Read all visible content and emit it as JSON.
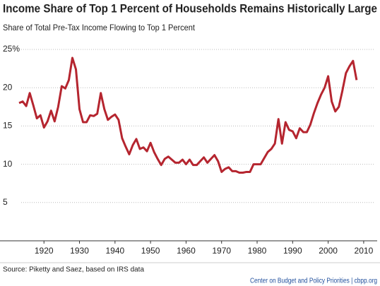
{
  "chart_data": {
    "type": "line",
    "title": "Income Share of Top 1 Percent of Households Remains Historically Large",
    "subtitle": "Share of Total Pre-Tax Income Flowing to Top 1 Percent",
    "source": "Source: Piketty and Saez, based on IRS data",
    "credit": "Center on Budget and Policy Priorities | cbpp.org",
    "x": [
      1913,
      1914,
      1915,
      1916,
      1917,
      1918,
      1919,
      1920,
      1921,
      1922,
      1923,
      1924,
      1925,
      1926,
      1927,
      1928,
      1929,
      1930,
      1931,
      1932,
      1933,
      1934,
      1935,
      1936,
      1937,
      1938,
      1939,
      1940,
      1941,
      1942,
      1943,
      1944,
      1945,
      1946,
      1947,
      1948,
      1949,
      1950,
      1951,
      1952,
      1953,
      1954,
      1955,
      1956,
      1957,
      1958,
      1959,
      1960,
      1961,
      1962,
      1963,
      1964,
      1965,
      1966,
      1967,
      1968,
      1969,
      1970,
      1971,
      1972,
      1973,
      1974,
      1975,
      1976,
      1977,
      1978,
      1979,
      1980,
      1981,
      1982,
      1983,
      1984,
      1985,
      1986,
      1987,
      1988,
      1989,
      1990,
      1991,
      1992,
      1993,
      1994,
      1995,
      1996,
      1997,
      1998,
      1999,
      2000,
      2001,
      2002,
      2003,
      2004,
      2005,
      2006,
      2007,
      2008
    ],
    "series": [
      {
        "name": "Top 1 percent share",
        "color": "#b5252f",
        "values": [
          18.0,
          18.2,
          17.6,
          19.3,
          17.7,
          16.0,
          16.4,
          14.8,
          15.6,
          17.0,
          15.6,
          17.5,
          20.2,
          19.9,
          21.0,
          23.9,
          22.4,
          17.2,
          15.5,
          15.5,
          16.4,
          16.3,
          16.6,
          19.3,
          17.2,
          15.8,
          16.2,
          16.5,
          15.8,
          13.4,
          12.3,
          11.3,
          12.5,
          13.3,
          12.0,
          12.2,
          11.7,
          12.8,
          11.6,
          10.7,
          9.9,
          10.7,
          11.0,
          10.6,
          10.2,
          10.2,
          10.6,
          10.0,
          10.6,
          9.9,
          9.9,
          10.4,
          10.9,
          10.2,
          10.7,
          11.2,
          10.4,
          9.0,
          9.4,
          9.6,
          9.1,
          9.1,
          8.9,
          8.9,
          9.0,
          9.0,
          10.0,
          10.0,
          10.0,
          10.8,
          11.6,
          12.0,
          12.7,
          15.9,
          12.7,
          15.5,
          14.5,
          14.3,
          13.4,
          14.7,
          14.2,
          14.2,
          15.2,
          16.7,
          18.0,
          19.1,
          20.0,
          21.5,
          18.2,
          16.9,
          17.5,
          19.6,
          21.9,
          22.8,
          23.5,
          21.0
        ]
      }
    ],
    "xlim": [
      1912,
      2013
    ],
    "xticks": [
      1920,
      1930,
      1940,
      1950,
      1960,
      1970,
      1980,
      1990,
      2000,
      2010
    ],
    "ylim": [
      0,
      25
    ],
    "yticks": [
      5,
      10,
      15,
      20,
      {
        "value": 25,
        "label": "25%"
      }
    ],
    "grid": true
  }
}
